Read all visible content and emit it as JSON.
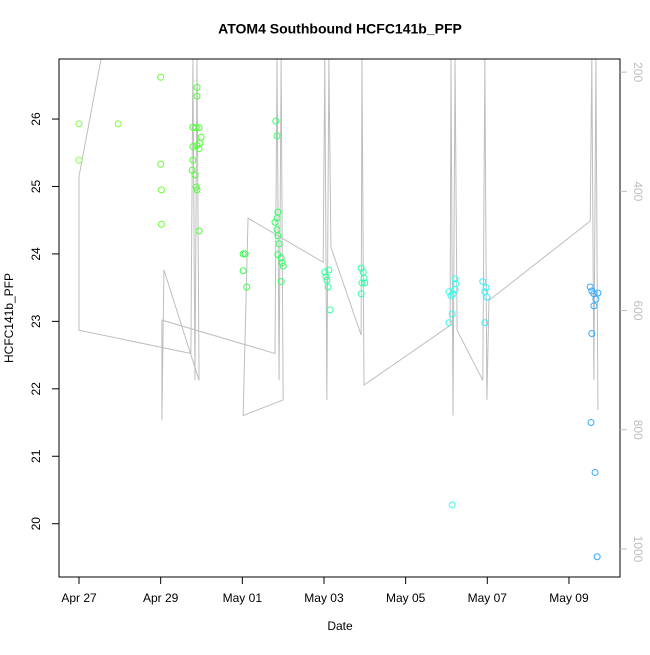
{
  "chart_data": {
    "type": "scatter",
    "title": "ATOM4 Southbound HCFC141b_PFP",
    "x_label": "Date",
    "y_label": "HCFC141b_PFP",
    "xlim": [
      -0.49,
      13.25
    ],
    "ylim": [
      19.21,
      26.89
    ],
    "y2lim": [
      1047,
      178
    ],
    "xticks": [
      {
        "value": 0,
        "label": "Apr 27"
      },
      {
        "value": 2,
        "label": "Apr 29"
      },
      {
        "value": 4,
        "label": "May 01"
      },
      {
        "value": 6,
        "label": "May 03"
      },
      {
        "value": 8,
        "label": "May 05"
      },
      {
        "value": 10,
        "label": "May 07"
      },
      {
        "value": 12,
        "label": "May 09"
      }
    ],
    "yticks": [
      20,
      21,
      22,
      23,
      24,
      25,
      26
    ],
    "y2ticks": [
      200,
      400,
      600,
      800,
      1000
    ],
    "y2_color": "#bebebe",
    "series": [
      {
        "color": "#80ff40",
        "x": [
          0,
          0,
          0.96
        ],
        "values": [
          25.93,
          25.39,
          25.93
        ]
      },
      {
        "color": "#66ff33",
        "x": [
          2.0,
          2.0,
          2.02,
          2.02
        ],
        "values": [
          26.62,
          25.33,
          24.95,
          24.44
        ]
      },
      {
        "color": "#4dff33",
        "x": [
          2.89,
          2.89,
          2.79,
          2.87,
          2.94,
          2.79,
          2.89,
          2.94,
          2.96,
          2.99,
          2.79,
          2.77,
          2.84,
          2.87,
          2.89,
          2.94
        ],
        "values": [
          26.47,
          26.34,
          25.88,
          25.87,
          25.87,
          25.59,
          25.61,
          25.56,
          25.64,
          25.73,
          25.39,
          25.24,
          25.17,
          24.99,
          24.95,
          24.34
        ]
      },
      {
        "color": "#33ff4d",
        "x": [
          4.02,
          4.07,
          4.02,
          4.11
        ],
        "values": [
          24.0,
          24.0,
          23.75,
          23.51
        ]
      },
      {
        "color": "#33ff66",
        "x": [
          4.82,
          4.85,
          4.87,
          4.85,
          4.8,
          4.85,
          4.87,
          4.9,
          4.87,
          4.95,
          4.97,
          5.0,
          4.95
        ],
        "values": [
          25.97,
          25.75,
          24.62,
          24.53,
          24.47,
          24.36,
          24.27,
          24.15,
          23.99,
          23.94,
          23.87,
          23.82,
          23.59
        ]
      },
      {
        "color": "#33ff99",
        "x": [
          6.02,
          6.05,
          6.07,
          6.12,
          6.1,
          6.15
        ],
        "values": [
          23.73,
          23.66,
          23.61,
          23.76,
          23.51,
          23.17
        ]
      },
      {
        "color": "#33ffaa",
        "x": [
          6.91,
          6.96,
          6.98,
          6.93,
          7.0,
          6.91
        ],
        "values": [
          23.79,
          23.73,
          23.64,
          23.57,
          23.57,
          23.41
        ]
      },
      {
        "color": "#33ffee",
        "x": [
          9.06,
          9.11,
          9.16,
          9.21,
          9.23,
          9.21,
          9.06,
          9.14,
          9.14
        ],
        "values": [
          23.44,
          23.38,
          23.41,
          23.47,
          23.56,
          23.63,
          22.98,
          23.11,
          20.28
        ]
      },
      {
        "color": "#33eeff",
        "x": [
          9.89,
          9.97,
          9.94,
          9.99,
          9.94
        ],
        "values": [
          23.59,
          23.5,
          23.44,
          23.36,
          22.98
        ]
      },
      {
        "color": "#33aaff",
        "x": [
          12.52,
          12.56,
          12.61,
          12.66,
          12.56,
          12.61,
          12.71,
          12.54,
          12.64,
          12.69
        ],
        "values": [
          23.51,
          23.45,
          23.41,
          23.33,
          22.82,
          23.23,
          23.42,
          21.5,
          20.76,
          19.51
        ]
      },
      {
        "type": "line",
        "axis": "y2",
        "color": "#bebebe",
        "x": [
          0.54,
          0,
          0,
          2.74,
          2.79,
          2.84,
          2.89,
          2.94,
          2.08,
          2.03,
          2.03,
          4.8,
          4.85,
          4.9,
          4.95,
          5.0,
          4.02,
          4.14,
          5.98,
          6.02,
          6.07,
          6.12,
          6.17,
          6.91,
          6.93,
          6.98,
          9.09,
          9.11,
          9.16,
          9.21,
          9.26,
          9.89,
          9.94,
          9.99,
          10.04,
          12.52,
          12.56,
          12.61,
          12.66,
          12.71
        ],
        "values": [
          178,
          375,
          633,
          672,
          178,
          717,
          178,
          717,
          532,
          784,
          616,
          672,
          178,
          717,
          178,
          750,
          776,
          445,
          519,
          178,
          750,
          178,
          494,
          641,
          178,
          725,
          625,
          178,
          776,
          178,
          633,
          717,
          178,
          750,
          583,
          450,
          178,
          717,
          178,
          767
        ]
      }
    ]
  }
}
